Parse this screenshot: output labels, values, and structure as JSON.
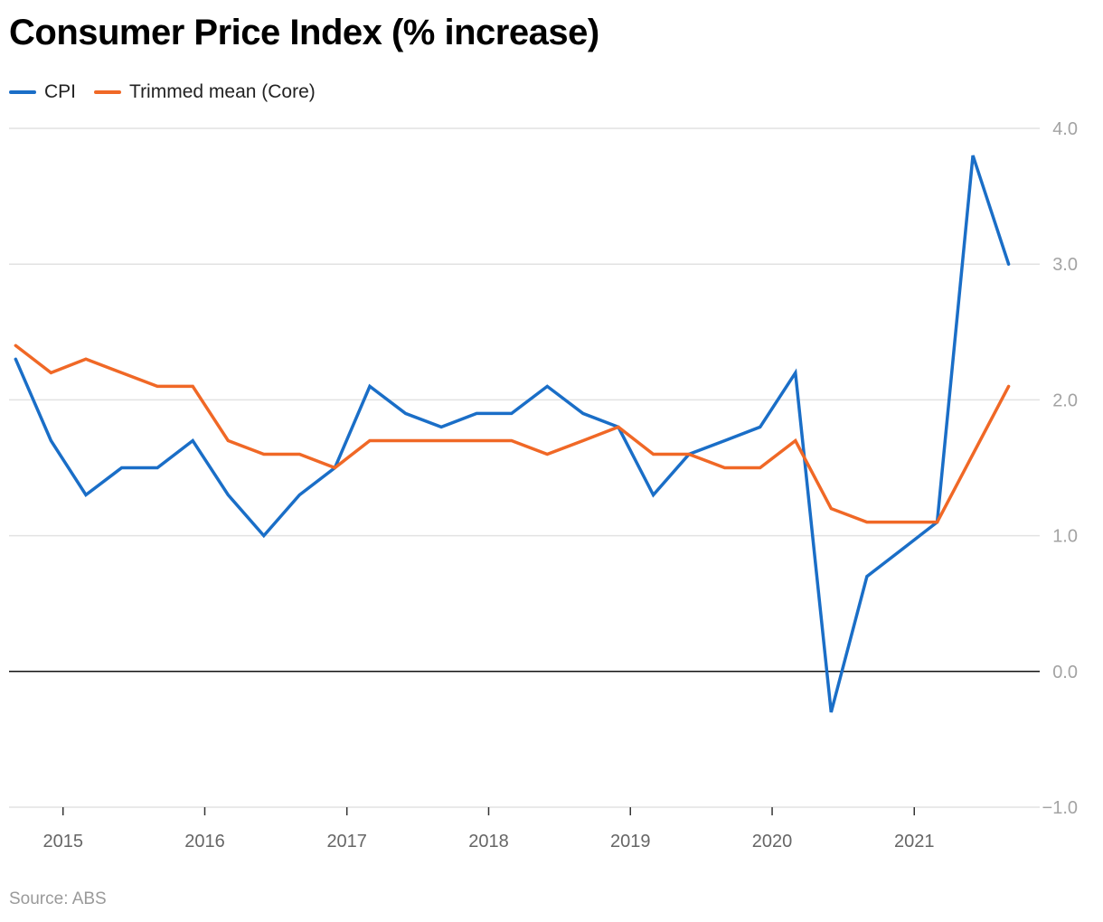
{
  "chart_data": {
    "type": "line",
    "title": "Consumer Price Index (% increase)",
    "source": "Source: ABS",
    "legend_position": "top-left",
    "grid": true,
    "ylim": [
      -1.0,
      4.0
    ],
    "y_ticks": [
      {
        "value": 4,
        "label": "4.0"
      },
      {
        "value": 3,
        "label": "3.0"
      },
      {
        "value": 2,
        "label": "2.0"
      },
      {
        "value": 1,
        "label": "1.0"
      },
      {
        "value": 0,
        "label": "0.0"
      },
      {
        "value": -1,
        "label": "−1.0"
      }
    ],
    "xlim": [
      "2014-08-15",
      "2021-11-20"
    ],
    "x_ticks": [
      {
        "value": "2015-01-01",
        "label": "2015"
      },
      {
        "value": "2016-01-01",
        "label": "2016"
      },
      {
        "value": "2017-01-01",
        "label": "2017"
      },
      {
        "value": "2018-01-01",
        "label": "2018"
      },
      {
        "value": "2019-01-01",
        "label": "2019"
      },
      {
        "value": "2020-01-01",
        "label": "2020"
      },
      {
        "value": "2021-01-01",
        "label": "2021"
      }
    ],
    "x": [
      "2014-09-01",
      "2014-12-01",
      "2015-03-01",
      "2015-06-01",
      "2015-09-01",
      "2015-12-01",
      "2016-03-01",
      "2016-06-01",
      "2016-09-01",
      "2016-12-01",
      "2017-03-01",
      "2017-06-01",
      "2017-09-01",
      "2017-12-01",
      "2018-03-01",
      "2018-06-01",
      "2018-09-01",
      "2018-12-01",
      "2019-03-01",
      "2019-06-01",
      "2019-09-01",
      "2019-12-01",
      "2020-03-01",
      "2020-06-01",
      "2020-09-01",
      "2020-12-01",
      "2021-03-01",
      "2021-06-01",
      "2021-09-01"
    ],
    "series": [
      {
        "name": "CPI",
        "color": "#1a6ec7",
        "values": [
          2.3,
          1.7,
          1.3,
          1.5,
          1.5,
          1.7,
          1.3,
          1.0,
          1.3,
          1.5,
          2.1,
          1.9,
          1.8,
          1.9,
          1.9,
          2.1,
          1.9,
          1.8,
          1.3,
          1.6,
          1.7,
          1.8,
          2.2,
          -0.3,
          0.7,
          0.9,
          1.1,
          3.8,
          3.0
        ]
      },
      {
        "name": "Trimmed mean (Core)",
        "color": "#f06826",
        "values": [
          2.4,
          2.2,
          2.3,
          2.2,
          2.1,
          2.1,
          1.7,
          1.6,
          1.6,
          1.5,
          1.7,
          1.7,
          1.7,
          1.7,
          1.7,
          1.6,
          1.7,
          1.8,
          1.6,
          1.6,
          1.5,
          1.5,
          1.7,
          1.2,
          1.1,
          1.1,
          1.1,
          1.6,
          2.1
        ]
      }
    ]
  }
}
